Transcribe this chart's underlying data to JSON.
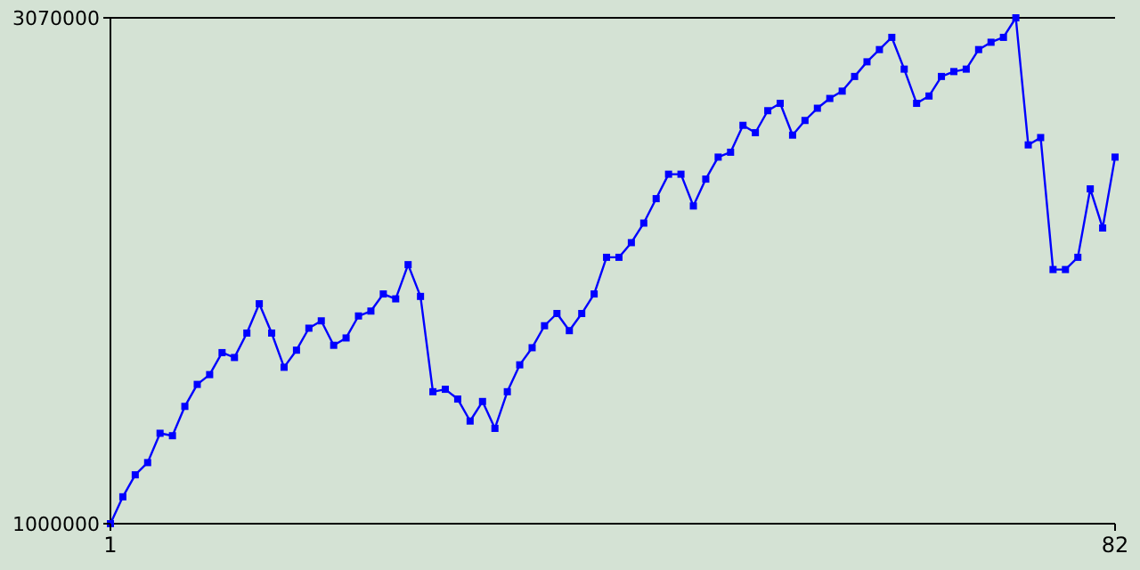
{
  "chart_data": {
    "type": "line",
    "x": [
      1,
      2,
      3,
      4,
      5,
      6,
      7,
      8,
      9,
      10,
      11,
      12,
      13,
      14,
      15,
      16,
      17,
      18,
      19,
      20,
      21,
      22,
      23,
      24,
      25,
      26,
      27,
      28,
      29,
      30,
      31,
      32,
      33,
      34,
      35,
      36,
      37,
      38,
      39,
      40,
      41,
      42,
      43,
      44,
      45,
      46,
      47,
      48,
      49,
      50,
      51,
      52,
      53,
      54,
      55,
      56,
      57,
      58,
      59,
      60,
      61,
      62,
      63,
      64,
      65,
      66,
      67,
      68,
      69,
      70,
      71,
      72,
      73,
      74,
      75,
      76,
      77,
      78,
      79,
      80,
      81,
      82
    ],
    "series": [
      {
        "color": "#0000ff",
        "values": [
          1000000,
          1110000,
          1200000,
          1250000,
          1370000,
          1360000,
          1480000,
          1570000,
          1610000,
          1700000,
          1680000,
          1780000,
          1900000,
          1780000,
          1640000,
          1710000,
          1800000,
          1830000,
          1730000,
          1760000,
          1850000,
          1870000,
          1940000,
          1920000,
          2060000,
          1930000,
          1540000,
          1550000,
          1510000,
          1420000,
          1500000,
          1390000,
          1540000,
          1650000,
          1720000,
          1810000,
          1860000,
          1790000,
          1860000,
          1940000,
          2090000,
          2090000,
          2150000,
          2230000,
          2330000,
          2430000,
          2430000,
          2300000,
          2410000,
          2500000,
          2520000,
          2630000,
          2600000,
          2690000,
          2720000,
          2590000,
          2650000,
          2700000,
          2740000,
          2770000,
          2830000,
          2890000,
          2940000,
          2990000,
          2860000,
          2720000,
          2750000,
          2830000,
          2850000,
          2860000,
          2940000,
          2970000,
          2990000,
          3070000,
          2550000,
          2580000,
          2040000,
          2040000,
          2090000,
          2370000,
          2210000,
          2500000
        ]
      }
    ],
    "xlim": [
      1,
      82
    ],
    "xticks": [
      1,
      82
    ],
    "ylim": [
      1000000,
      3070000
    ],
    "yticks": [
      1000000,
      3070000
    ],
    "grid": false,
    "marker": "square",
    "line_style": "solid"
  }
}
